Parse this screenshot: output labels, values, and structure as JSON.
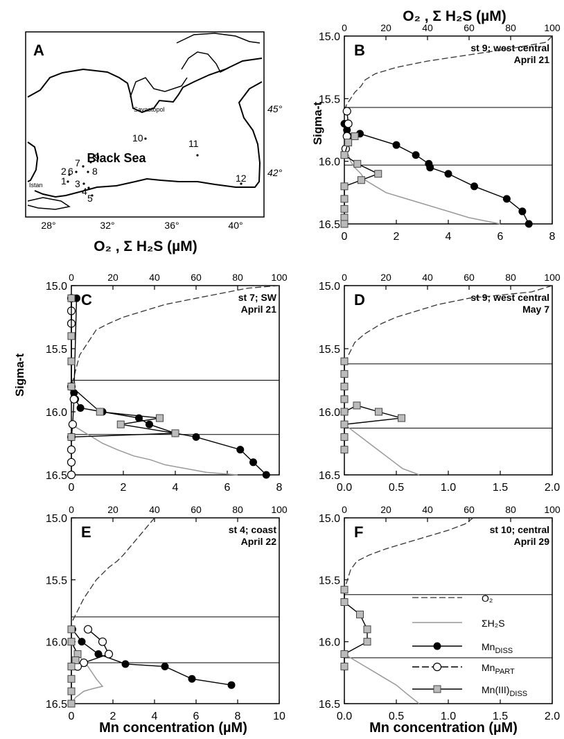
{
  "figure": {
    "top_axis_title": "O₂ , Σ H₂S (µM)",
    "left_axis_title": "Sigma-t",
    "bottom_axis_title": "Mn concentration (µM)"
  },
  "map": {
    "panel_letter": "A",
    "sea_label": "Black Sea",
    "city_labels": [
      "Savastopol",
      "Istan"
    ],
    "lat_labels": [
      "45°",
      "42°"
    ],
    "lon_labels": [
      "28°",
      "32°",
      "36°",
      "40°"
    ],
    "stations": [
      "1",
      "2",
      "3",
      "4",
      "5",
      "6",
      "7",
      "8",
      "9",
      "10",
      "11",
      "12"
    ]
  },
  "legend": {
    "o2": "O₂",
    "h2s": "ΣH₂S",
    "mn_diss": "Mn_DISS",
    "mn_part": "Mn_PART",
    "mn3_diss": "Mn(III)_DISS"
  },
  "chart_data": [
    {
      "panel": "B",
      "type": "line",
      "annotation": [
        "st 9; west central",
        "April 21"
      ],
      "ylabel": "Sigma-t",
      "ylim": [
        16.5,
        15.0
      ],
      "yticks": [
        "15.0",
        "15.5",
        "16.0",
        "16.5"
      ],
      "x_bottom": {
        "range": [
          0,
          8
        ],
        "ticks": [
          "0",
          "2",
          "4",
          "6",
          "8"
        ]
      },
      "x_top": {
        "range": [
          0,
          100
        ],
        "ticks": [
          "0",
          "20",
          "40",
          "60",
          "80",
          "100"
        ]
      },
      "hlines": [
        15.57,
        16.03
      ],
      "series": [
        {
          "name": "O₂",
          "axis": "top",
          "style": "dashed",
          "x": [
            100,
            97,
            80,
            60,
            40,
            25,
            15,
            10,
            8,
            5,
            3,
            1,
            0
          ],
          "y": [
            15.0,
            15.05,
            15.1,
            15.15,
            15.2,
            15.25,
            15.3,
            15.35,
            15.4,
            15.45,
            15.5,
            15.55,
            15.6
          ]
        },
        {
          "name": "ΣH₂S",
          "axis": "top",
          "style": "solid-gray",
          "x": [
            0,
            2,
            3,
            5,
            8,
            10,
            15,
            20,
            30,
            40,
            50,
            60,
            75
          ],
          "y": [
            15.9,
            15.95,
            16.0,
            16.05,
            16.1,
            16.15,
            16.2,
            16.25,
            16.3,
            16.35,
            16.4,
            16.45,
            16.5
          ]
        },
        {
          "name": "Mn_DISS",
          "axis": "bottom",
          "marker": "filled-circle",
          "x": [
            0.0,
            0.1,
            0.15,
            0.6,
            2.0,
            2.75,
            3.25,
            3.3,
            4.0,
            5.0,
            6.25,
            6.85,
            7.1
          ],
          "y": [
            15.7,
            15.75,
            15.8,
            15.78,
            15.87,
            15.95,
            16.02,
            16.05,
            16.1,
            16.2,
            16.3,
            16.4,
            16.5
          ]
        },
        {
          "name": "Mn_PART",
          "axis": "bottom",
          "marker": "open-circle",
          "x": [
            0.1,
            0.15,
            0.1,
            0.05
          ],
          "y": [
            15.6,
            15.7,
            15.8,
            15.9
          ]
        },
        {
          "name": "Mn(III)_DISS",
          "axis": "bottom",
          "marker": "gray-square",
          "x": [
            0.4,
            0.15,
            0.0,
            0.5,
            1.3,
            0.65,
            0.0,
            0.0,
            0.0,
            0.0,
            0.0
          ],
          "y": [
            15.8,
            15.85,
            15.95,
            16.02,
            16.1,
            16.15,
            16.2,
            16.3,
            16.38,
            16.45,
            16.5
          ]
        }
      ]
    },
    {
      "panel": "C",
      "type": "line",
      "annotation": [
        "st 7; SW",
        "April 21"
      ],
      "ylabel": "Sigma-t",
      "ylim": [
        16.5,
        15.0
      ],
      "yticks": [
        "15.0",
        "15.5",
        "16.0",
        "16.5"
      ],
      "x_bottom": {
        "range": [
          0,
          8
        ],
        "ticks": [
          "0",
          "2",
          "4",
          "6",
          "8"
        ]
      },
      "x_top": {
        "range": [
          0,
          100
        ],
        "ticks": [
          "0",
          "20",
          "40",
          "60",
          "80",
          "100"
        ]
      },
      "hlines": [
        15.75,
        16.18
      ],
      "series": [
        {
          "name": "O₂",
          "axis": "top",
          "style": "dashed",
          "x": [
            100,
            85,
            60,
            45,
            35,
            25,
            18,
            12,
            8,
            4,
            0
          ],
          "y": [
            15.0,
            15.02,
            15.1,
            15.15,
            15.2,
            15.25,
            15.3,
            15.35,
            15.45,
            15.55,
            15.8
          ]
        },
        {
          "name": "ΣH₂S",
          "axis": "top",
          "style": "solid-gray",
          "x": [
            0,
            5,
            10,
            15,
            22,
            30,
            38,
            45,
            55,
            65,
            80
          ],
          "y": [
            16.1,
            16.15,
            16.2,
            16.25,
            16.3,
            16.35,
            16.38,
            16.42,
            16.45,
            16.48,
            16.5
          ]
        },
        {
          "name": "Mn_DISS",
          "axis": "bottom",
          "marker": "filled-circle",
          "x": [
            0.2,
            0.1,
            0.15,
            0.35,
            1.2,
            2.6,
            3.0,
            4.0,
            4.8,
            6.5,
            7.0,
            7.5
          ],
          "y": [
            15.1,
            15.85,
            15.9,
            15.97,
            16.0,
            16.05,
            16.1,
            16.17,
            16.2,
            16.3,
            16.4,
            16.5
          ]
        },
        {
          "name": "Mn_PART",
          "axis": "bottom",
          "marker": "open-circle",
          "x": [
            0.0,
            0.0,
            0.0,
            0.0,
            0.1,
            0.05,
            0.0,
            0.0,
            0.0,
            0.0
          ],
          "y": [
            15.1,
            15.2,
            15.3,
            15.8,
            15.9,
            16.1,
            16.2,
            16.3,
            16.4,
            16.5
          ]
        },
        {
          "name": "Mn(III)_DISS",
          "axis": "bottom",
          "marker": "gray-square",
          "x": [
            0.0,
            0.0,
            0.0,
            0.0,
            1.1,
            3.4,
            1.9,
            4.0,
            0.0
          ],
          "y": [
            15.1,
            15.4,
            15.6,
            15.8,
            16.0,
            16.05,
            16.1,
            16.17,
            16.2
          ]
        }
      ]
    },
    {
      "panel": "D",
      "type": "line",
      "annotation": [
        "st 9; west central",
        "May 7"
      ],
      "ylim": [
        16.5,
        15.0
      ],
      "yticks": [
        "15.0",
        "15.5",
        "16.0",
        "16.5"
      ],
      "x_bottom": {
        "range": [
          0,
          2
        ],
        "ticks": [
          "0.0",
          "0.5",
          "1.0",
          "1.5",
          "2.0"
        ]
      },
      "x_top": {
        "range": [
          0,
          100
        ],
        "ticks": [
          "0",
          "20",
          "40",
          "60",
          "80",
          "100"
        ]
      },
      "hlines": [
        15.62,
        16.13
      ],
      "series": [
        {
          "name": "O₂",
          "axis": "top",
          "style": "dashed",
          "x": [
            100,
            90,
            60,
            45,
            35,
            25,
            18,
            10,
            5,
            2,
            0
          ],
          "y": [
            15.0,
            15.05,
            15.1,
            15.15,
            15.2,
            15.25,
            15.3,
            15.38,
            15.45,
            15.55,
            15.62
          ]
        },
        {
          "name": "ΣH₂S",
          "axis": "top",
          "style": "solid-gray",
          "x": [
            0,
            4,
            8,
            12,
            16,
            20,
            24,
            28,
            33,
            36
          ],
          "y": [
            16.1,
            16.15,
            16.2,
            16.25,
            16.3,
            16.35,
            16.4,
            16.45,
            16.48,
            16.5
          ]
        },
        {
          "name": "Mn(III)_DISS",
          "axis": "bottom",
          "marker": "gray-square",
          "x": [
            0.0,
            0.0,
            0.0,
            0.0,
            0.0,
            0.12,
            0.33,
            0.55,
            0.0,
            0.0,
            0.0
          ],
          "y": [
            15.6,
            15.7,
            15.8,
            15.9,
            16.0,
            15.95,
            16.0,
            16.05,
            16.1,
            16.2,
            16.3
          ]
        }
      ]
    },
    {
      "panel": "E",
      "type": "line",
      "annotation": [
        "st 4; coast",
        "April 22"
      ],
      "ylabel": "Sigma-t",
      "ylim": [
        16.5,
        15.0
      ],
      "yticks": [
        "15.0",
        "15.5",
        "16.0",
        "16.5"
      ],
      "x_bottom": {
        "range": [
          0,
          10
        ],
        "ticks": [
          "0",
          "2",
          "4",
          "6",
          "8",
          "10"
        ]
      },
      "x_top": {
        "range": [
          0,
          100
        ],
        "ticks": [
          "0",
          "20",
          "40",
          "60",
          "80",
          "100"
        ]
      },
      "xlabel": "Mn concentration (µM)",
      "hlines": [
        15.8,
        16.17
      ],
      "series": [
        {
          "name": "O₂",
          "axis": "top",
          "style": "dashed",
          "x": [
            40,
            35,
            30,
            25,
            22,
            18,
            15,
            12,
            10,
            6,
            3,
            0
          ],
          "y": [
            15.0,
            15.1,
            15.2,
            15.3,
            15.35,
            15.4,
            15.45,
            15.5,
            15.55,
            15.65,
            15.75,
            15.85
          ]
        },
        {
          "name": "ΣH₂S",
          "axis": "top",
          "style": "solid-gray",
          "x": [
            0,
            3,
            8,
            12,
            15,
            10,
            6,
            2,
            0
          ],
          "y": [
            16.0,
            16.1,
            16.2,
            16.3,
            16.36,
            16.38,
            16.4,
            16.45,
            16.5
          ]
        },
        {
          "name": "Mn_DISS",
          "axis": "bottom",
          "marker": "filled-circle",
          "x": [
            0.05,
            0.5,
            1.3,
            2.6,
            4.5,
            5.8,
            7.7
          ],
          "y": [
            15.9,
            16.0,
            16.1,
            16.18,
            16.2,
            16.3,
            16.35
          ]
        },
        {
          "name": "Mn_PART",
          "axis": "bottom",
          "marker": "open-circle",
          "x": [
            0.8,
            1.5,
            1.8,
            0.6,
            0.3
          ],
          "y": [
            15.9,
            16.0,
            16.1,
            16.17,
            16.2
          ]
        },
        {
          "name": "Mn(III)_DISS",
          "axis": "bottom",
          "marker": "gray-square",
          "x": [
            0.0,
            0.0,
            0.3,
            0.2,
            0.0,
            0.0,
            0.0,
            0.0
          ],
          "y": [
            15.9,
            16.0,
            16.1,
            16.15,
            16.2,
            16.3,
            16.4,
            16.5
          ]
        }
      ]
    },
    {
      "panel": "F",
      "type": "line",
      "annotation": [
        "st 10; central",
        "April 29"
      ],
      "ylim": [
        16.5,
        15.0
      ],
      "yticks": [
        "15.0",
        "15.5",
        "16.0",
        "16.5"
      ],
      "x_bottom": {
        "range": [
          0,
          2
        ],
        "ticks": [
          "0.0",
          "0.5",
          "1.0",
          "1.5",
          "2.0"
        ]
      },
      "x_top": {
        "range": [
          0,
          100
        ],
        "ticks": [
          "0",
          "20",
          "40",
          "60",
          "80",
          "100"
        ]
      },
      "xlabel": "Mn concentration (µM)",
      "hlines": [
        15.62,
        16.13
      ],
      "series": [
        {
          "name": "O₂",
          "axis": "top",
          "style": "dashed",
          "x": [
            62,
            58,
            50,
            40,
            30,
            20,
            12,
            6,
            3,
            0
          ],
          "y": [
            15.0,
            15.05,
            15.1,
            15.15,
            15.2,
            15.25,
            15.3,
            15.35,
            15.42,
            15.58
          ]
        },
        {
          "name": "ΣH₂S",
          "axis": "top",
          "style": "solid-gray",
          "x": [
            0,
            5,
            10,
            15,
            20,
            25,
            30,
            36
          ],
          "y": [
            16.1,
            16.15,
            16.2,
            16.25,
            16.3,
            16.35,
            16.42,
            16.5
          ]
        },
        {
          "name": "Mn(III)_DISS",
          "axis": "bottom",
          "marker": "gray-square",
          "x": [
            0.0,
            0.0,
            0.15,
            0.22,
            0.22,
            0.0,
            0.0
          ],
          "y": [
            15.58,
            15.68,
            15.78,
            15.9,
            16.0,
            16.1,
            16.2
          ]
        }
      ]
    }
  ]
}
